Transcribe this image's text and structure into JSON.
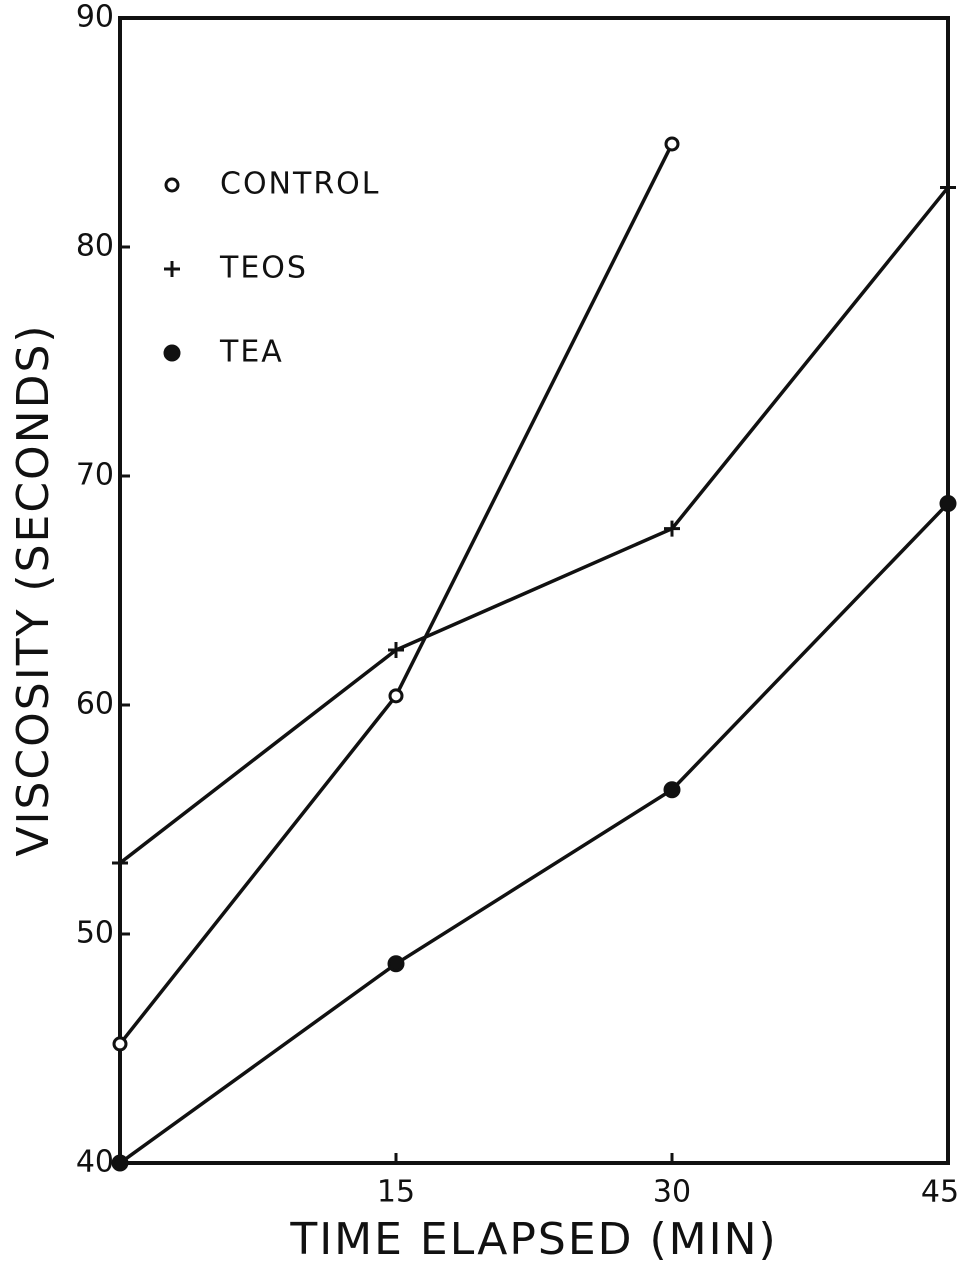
{
  "chart_data": {
    "type": "line",
    "x_label": "TIME ELAPSED (MIN)",
    "y_label": "VISCOSITY (SECONDS)",
    "x": [
      0,
      15,
      30,
      45
    ],
    "series": [
      {
        "name": "CONTROL",
        "color": "#111111",
        "marker": "open-circle",
        "values": [
          45.2,
          60.4,
          84.5,
          null
        ]
      },
      {
        "name": "TEOS",
        "color": "#111111",
        "marker": "plus",
        "values": [
          53.1,
          62.4,
          67.7,
          82.6
        ]
      },
      {
        "name": "TEA",
        "color": "#111111",
        "marker": "filled-circle",
        "values": [
          40,
          48.7,
          56.3,
          68.8
        ]
      }
    ],
    "xlim": [
      0,
      45
    ],
    "xticks": [
      15,
      30,
      45
    ],
    "ylim": [
      40,
      90
    ],
    "yticks": [
      40,
      50,
      60,
      70,
      80,
      90
    ],
    "grid": false,
    "legend": "upper left"
  }
}
